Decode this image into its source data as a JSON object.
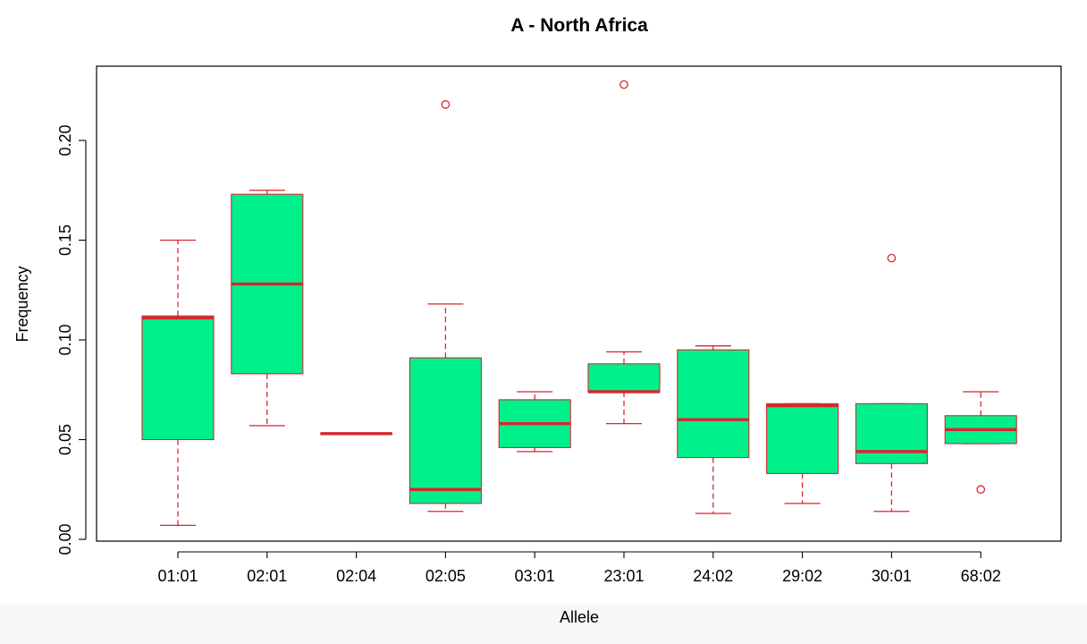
{
  "chart_data": {
    "type": "boxplot",
    "title": "A - North Africa",
    "xlabel": "Allele",
    "ylabel": "Frequency",
    "ylim": [
      0,
      0.23
    ],
    "yticks": [
      "0.00",
      "0.05",
      "0.10",
      "0.15",
      "0.20"
    ],
    "categories": [
      "01:01",
      "02:01",
      "02:04",
      "02:05",
      "03:01",
      "23:01",
      "24:02",
      "29:02",
      "30:01",
      "68:02"
    ],
    "boxes": [
      {
        "category": "01:01",
        "whisker_low": 0.007,
        "q1": 0.05,
        "median": 0.111,
        "q3": 0.112,
        "whisker_high": 0.15,
        "outliers": []
      },
      {
        "category": "02:01",
        "whisker_low": 0.057,
        "q1": 0.083,
        "median": 0.128,
        "q3": 0.173,
        "whisker_high": 0.175,
        "outliers": []
      },
      {
        "category": "02:04",
        "whisker_low": 0.053,
        "q1": 0.053,
        "median": 0.053,
        "q3": 0.053,
        "whisker_high": 0.053,
        "outliers": []
      },
      {
        "category": "02:05",
        "whisker_low": 0.014,
        "q1": 0.018,
        "median": 0.025,
        "q3": 0.091,
        "whisker_high": 0.118,
        "outliers": [
          0.218
        ]
      },
      {
        "category": "03:01",
        "whisker_low": 0.044,
        "q1": 0.046,
        "median": 0.058,
        "q3": 0.07,
        "whisker_high": 0.074,
        "outliers": []
      },
      {
        "category": "23:01",
        "whisker_low": 0.058,
        "q1": 0.074,
        "median": 0.074,
        "q3": 0.088,
        "whisker_high": 0.094,
        "outliers": [
          0.228
        ]
      },
      {
        "category": "24:02",
        "whisker_low": 0.013,
        "q1": 0.041,
        "median": 0.06,
        "q3": 0.095,
        "whisker_high": 0.097,
        "outliers": []
      },
      {
        "category": "29:02",
        "whisker_low": 0.018,
        "q1": 0.033,
        "median": 0.067,
        "q3": 0.068,
        "whisker_high": 0.068,
        "outliers": []
      },
      {
        "category": "30:01",
        "whisker_low": 0.014,
        "q1": 0.038,
        "median": 0.044,
        "q3": 0.068,
        "whisker_high": 0.068,
        "outliers": [
          0.141
        ]
      },
      {
        "category": "68:02",
        "whisker_low": 0.048,
        "q1": 0.048,
        "median": 0.055,
        "q3": 0.062,
        "whisker_high": 0.074,
        "outliers": [
          0.025
        ]
      }
    ],
    "box_fill": "#00f08c",
    "line_color": "#d7262e",
    "grid": false,
    "legend": "none"
  }
}
